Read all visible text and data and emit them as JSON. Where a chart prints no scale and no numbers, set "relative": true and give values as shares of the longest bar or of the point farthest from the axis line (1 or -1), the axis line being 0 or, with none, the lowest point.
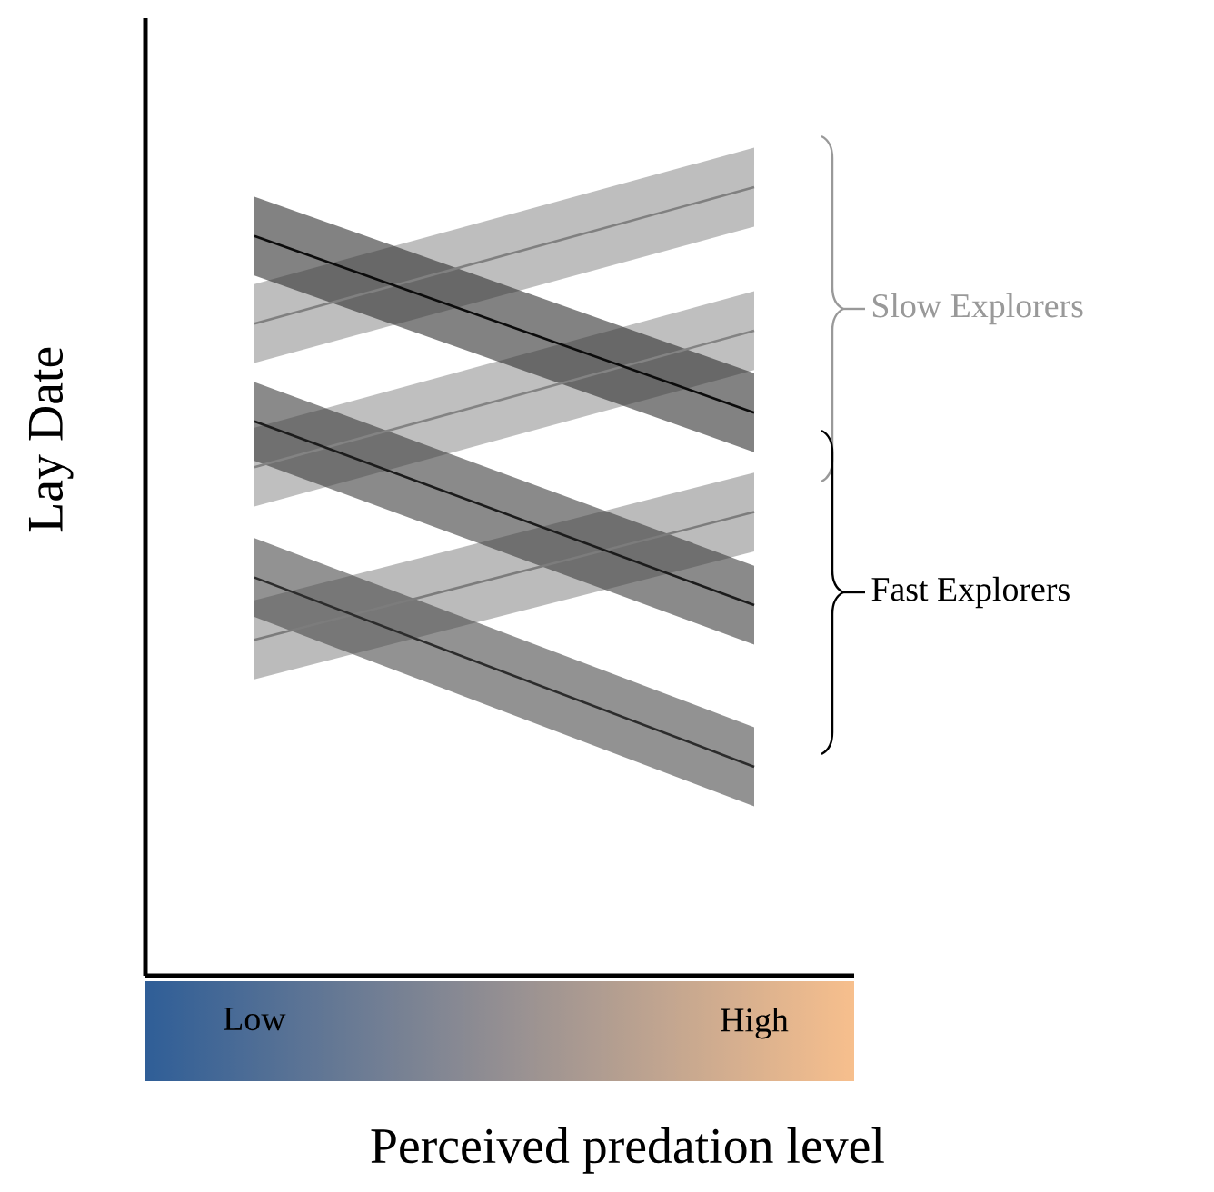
{
  "chart_data": {
    "type": "line",
    "relative": true,
    "xlabel": "Perceived predation level",
    "ylabel": "Lay Date",
    "categories": [
      "Low",
      "High"
    ],
    "series": [
      {
        "color": "#808080",
        "values": [
          0.827,
          1.0
        ],
        "lower": [
          0.777,
          0.95
        ],
        "upper": [
          0.877,
          1.05
        ]
      },
      {
        "color": "#838383",
        "values": [
          0.645,
          0.818
        ],
        "lower": [
          0.595,
          0.768
        ],
        "upper": [
          0.695,
          0.868
        ]
      },
      {
        "color": "#7c7c7c",
        "values": [
          0.426,
          0.588
        ],
        "lower": [
          0.376,
          0.538
        ],
        "upper": [
          0.476,
          0.638
        ]
      },
      {
        "color": "#0c0c0c",
        "values": [
          0.938,
          0.714
        ],
        "lower": [
          0.888,
          0.664
        ],
        "upper": [
          0.988,
          0.764
        ]
      },
      {
        "color": "#1c1c1c",
        "values": [
          0.703,
          0.47
        ],
        "lower": [
          0.653,
          0.42
        ],
        "upper": [
          0.753,
          0.52
        ]
      },
      {
        "color": "#2c2c2c",
        "values": [
          0.505,
          0.265
        ],
        "lower": [
          0.455,
          0.215
        ],
        "upper": [
          0.555,
          0.315
        ]
      }
    ],
    "annotations": [
      "Slow Explorers",
      "Fast Explorers"
    ]
  }
}
